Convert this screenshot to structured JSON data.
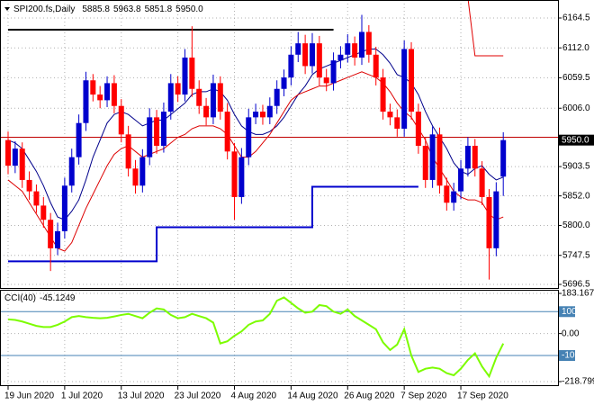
{
  "chart_data": [
    {
      "type": "candlestick",
      "title": "SPI200.fs,Daily",
      "categories": [
        "19 Jun 2020",
        null,
        null,
        null,
        null,
        null,
        null,
        null,
        "1 Jul 2020",
        null,
        null,
        null,
        null,
        null,
        null,
        null,
        "13 Jul 2020",
        null,
        null,
        null,
        null,
        null,
        null,
        null,
        "23 Jul 2020",
        null,
        null,
        null,
        null,
        null,
        null,
        null,
        "4 Aug 2020",
        null,
        null,
        null,
        null,
        null,
        null,
        null,
        "14 Aug 2020",
        null,
        null,
        null,
        null,
        null,
        null,
        null,
        "26 Aug 2020",
        null,
        null,
        null,
        null,
        null,
        null,
        null,
        "7 Sep 2020",
        null,
        null,
        null,
        null,
        null,
        null,
        null,
        "17 Sep 2020",
        null,
        null,
        null,
        null,
        null,
        null
      ],
      "open": [
        5950,
        5905,
        5935,
        5880,
        5860,
        5835,
        5810,
        5760,
        5790,
        5870,
        5920,
        5980,
        6055,
        6030,
        6020,
        6050,
        6010,
        5960,
        5900,
        5870,
        5920,
        5990,
        5940,
        6000,
        6050,
        6030,
        6095,
        6040,
        6010,
        5990,
        6050,
        6000,
        5930,
        5850,
        5920,
        5990,
        6000,
        5990,
        6010,
        6040,
        6060,
        6100,
        6120,
        6080,
        6120,
        6060,
        6050,
        6090,
        6100,
        6120,
        6095,
        6140,
        6100,
        6060,
        6000,
        5990,
        5970,
        6110,
        6000,
        5940,
        5880,
        5960,
        5870,
        5840,
        5860,
        5900,
        5940,
        5900,
        5850,
        5760,
        5885.8
      ],
      "high": [
        5965,
        5948,
        5946,
        5895,
        5872,
        5850,
        5822,
        5805,
        5884,
        5935,
        5995,
        6070,
        6066,
        6045,
        6062,
        6064,
        6022,
        5975,
        5915,
        5934,
        6006,
        6003,
        6016,
        6066,
        6062,
        6110,
        6150,
        6055,
        6024,
        6065,
        6062,
        6015,
        5945,
        5936,
        6005,
        6014,
        6012,
        6025,
        6055,
        6074,
        6115,
        6140,
        6135,
        6138,
        6133,
        6075,
        6104,
        6115,
        6136,
        6132,
        6170,
        6152,
        6114,
        6075,
        6014,
        6004,
        6125,
        6122,
        6014,
        5955,
        5974,
        5972,
        5884,
        5875,
        5915,
        5955,
        5952,
        5913,
        5864,
        5876,
        5963.8
      ],
      "low": [
        5890,
        5892,
        5866,
        5845,
        5822,
        5796,
        5720,
        5748,
        5777,
        5858,
        5907,
        5966,
        6018,
        6006,
        6008,
        5997,
        5946,
        5886,
        5856,
        5858,
        5906,
        5926,
        5928,
        5986,
        6017,
        6018,
        6026,
        5996,
        5976,
        5978,
        5986,
        5916,
        5810,
        5838,
        5906,
        5978,
        5977,
        5978,
        5996,
        6027,
        6046,
        6087,
        6066,
        6067,
        6046,
        6036,
        6037,
        6076,
        6086,
        6081,
        6082,
        6086,
        6046,
        5986,
        5976,
        5956,
        5956,
        5986,
        5926,
        5866,
        5866,
        5856,
        5826,
        5826,
        5846,
        5886,
        5886,
        5836,
        5705,
        5746,
        5851.8
      ],
      "close": [
        5905,
        5935,
        5880,
        5860,
        5835,
        5810,
        5760,
        5790,
        5870,
        5920,
        5980,
        6055,
        6030,
        6020,
        6050,
        6010,
        5960,
        5900,
        5870,
        5920,
        5990,
        5940,
        6000,
        6050,
        6030,
        6095,
        6040,
        6010,
        5990,
        6050,
        6000,
        5930,
        5850,
        5920,
        5990,
        6000,
        5990,
        6010,
        6040,
        6060,
        6100,
        6120,
        6080,
        6120,
        6060,
        6050,
        6090,
        6100,
        6120,
        6095,
        6140,
        6100,
        6060,
        6000,
        5990,
        5970,
        6110,
        6000,
        5940,
        5880,
        5960,
        5870,
        5840,
        5860,
        5900,
        5940,
        5900,
        5850,
        5760,
        5860,
        5950
      ],
      "up_color": "#0000cd",
      "down_color": "#ff0000",
      "current_price": {
        "value": 5950,
        "label": "5950.0"
      },
      "ask": 5955,
      "ask_color": "#c00000",
      "overlays": [
        {
          "color": "#00008b",
          "values": [
            5950,
            5945,
            5935,
            5915,
            5895,
            5870,
            5840,
            5815,
            5810,
            5825,
            5845,
            5880,
            5920,
            5950,
            5980,
            5995,
            6000,
            5995,
            5985,
            5975,
            5980,
            5985,
            5985,
            5995,
            6005,
            6015,
            6030,
            6035,
            6035,
            6040,
            6035,
            6020,
            5995,
            5975,
            5965,
            5960,
            5960,
            5965,
            5975,
            5990,
            6010,
            6030,
            6045,
            6065,
            6075,
            6080,
            6085,
            6090,
            6095,
            6100,
            6105,
            6110,
            6110,
            6100,
            6085,
            6065,
            6060,
            6050,
            6030,
            6000,
            5975,
            5955,
            5935,
            5910,
            5895,
            5890,
            5900,
            5905,
            5890,
            5880,
            5885
          ]
        },
        {
          "color": "#dd0000",
          "values": [
            5880,
            5870,
            5860,
            5840,
            5820,
            5800,
            5780,
            5760,
            5755,
            5770,
            5800,
            5830,
            5855,
            5880,
            5905,
            5925,
            5935,
            5940,
            5930,
            5920,
            5925,
            5930,
            5935,
            5945,
            5955,
            5960,
            5970,
            5975,
            5975,
            5975,
            5970,
            5960,
            5940,
            5920,
            5920,
            5930,
            5945,
            5960,
            5980,
            6000,
            6020,
            6030,
            6035,
            6040,
            6045,
            6045,
            6050,
            6055,
            6060,
            6065,
            6070,
            6065,
            6060,
            6050,
            6035,
            6015,
            6000,
            5990,
            5970,
            5950,
            5920,
            5900,
            5880,
            5860,
            5850,
            5845,
            5845,
            5840,
            5820,
            5810,
            5815
          ]
        },
        {
          "color": "#0000cd",
          "step": true,
          "values": [
            5737,
            5737,
            5737,
            5737,
            5737,
            5737,
            5737,
            5737,
            5737,
            5737,
            5737,
            5737,
            5737,
            5737,
            5737,
            5737,
            5737,
            5737,
            5737,
            5737,
            5737,
            5797,
            5797,
            5797,
            5797,
            5797,
            5797,
            5797,
            5797,
            5797,
            5797,
            5797,
            5797,
            5797,
            5797,
            5797,
            5797,
            5797,
            5797,
            5797,
            5797,
            5797,
            5797,
            5868,
            5868,
            5868,
            5868,
            5868,
            5868,
            5868,
            5868,
            5868,
            5868,
            5868,
            5868,
            5868,
            5868,
            5868,
            5868,
            null,
            null,
            null,
            null,
            null,
            null,
            null,
            null,
            null,
            null,
            null,
            null
          ]
        },
        {
          "color": "#000000",
          "values": [
            6144,
            6144,
            6144,
            6144,
            6144,
            6144,
            6144,
            6144,
            6144,
            6144,
            6144,
            6144,
            6144,
            6144,
            6144,
            6144,
            6144,
            6144,
            6144,
            6144,
            6144,
            6144,
            6144,
            6144,
            6144,
            6144,
            6144,
            6144,
            6144,
            6144,
            6144,
            6144,
            6144,
            6144,
            6144,
            6144,
            6144,
            6144,
            6144,
            6144,
            6144,
            6144,
            6144,
            6144,
            6144,
            6144,
            6144,
            null,
            null,
            null,
            null,
            null,
            null,
            null,
            null,
            null,
            null,
            null,
            null,
            null,
            null,
            null,
            null,
            null,
            null,
            null,
            null,
            null,
            null,
            null,
            null
          ]
        },
        {
          "color": "#e00000",
          "values": [
            null,
            null,
            null,
            null,
            null,
            null,
            null,
            null,
            null,
            null,
            null,
            null,
            null,
            null,
            null,
            null,
            null,
            null,
            null,
            null,
            null,
            null,
            null,
            null,
            null,
            null,
            null,
            null,
            null,
            null,
            null,
            null,
            null,
            null,
            null,
            null,
            null,
            null,
            null,
            null,
            null,
            null,
            null,
            null,
            null,
            null,
            null,
            null,
            null,
            null,
            null,
            null,
            null,
            null,
            null,
            null,
            null,
            null,
            null,
            null,
            null,
            null,
            null,
            null,
            null,
            6200,
            6098,
            6098,
            6098,
            6098,
            6098
          ]
        }
      ],
      "ylim": [
        5690.2,
        6196.1
      ],
      "yticks": [
        6164.5,
        {
          "value": 6112,
          "label": "6112.0"
        },
        6059.5,
        {
          "value": 6006,
          "label": "6006.0"
        },
        5903.5,
        {
          "value": 5852,
          "label": "5852.0"
        },
        {
          "value": 5800,
          "label": "5800.0"
        },
        5747.5,
        5696.5
      ],
      "grid": true
    },
    {
      "type": "line",
      "title": "CCI(40)",
      "series": [
        {
          "color": "#7cfc00",
          "values": [
            65,
            62,
            55,
            45,
            35,
            30,
            30,
            40,
            55,
            75,
            80,
            75,
            72,
            70,
            72,
            78,
            85,
            90,
            80,
            70,
            95,
            115,
            110,
            85,
            70,
            75,
            90,
            80,
            70,
            50,
            -45,
            -35,
            -10,
            10,
            40,
            55,
            60,
            90,
            150,
            165,
            140,
            115,
            95,
            100,
            130,
            125,
            100,
            90,
            110,
            80,
            60,
            40,
            20,
            -40,
            -75,
            -50,
            20,
            -100,
            -175,
            -160,
            -155,
            -160,
            -180,
            -190,
            -160,
            -120,
            -90,
            -150,
            -195,
            -110,
            -45.1249
          ]
        }
      ],
      "levels": [
        100,
        -100
      ],
      "level_color": "#4682b4",
      "ylim": [
        -218.799,
        183.1673
      ],
      "yticks": [
        183.1673,
        100,
        {
          "value": 0,
          "label": "0.00"
        },
        -100,
        -218.799
      ],
      "grid": true
    }
  ]
}
